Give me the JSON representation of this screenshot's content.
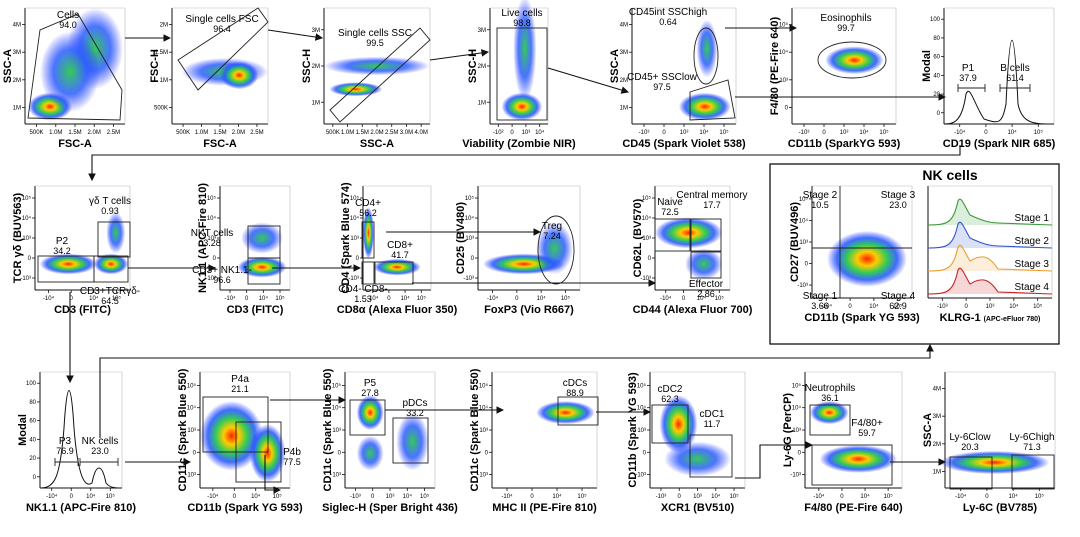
{
  "colors": {
    "gate": "#222222",
    "arrow": "#111111",
    "density_low": "#1a2bd8",
    "density_mid": "#33cc55",
    "density_high": "#ff2200"
  },
  "chart_data": [
    {
      "id": "p1",
      "type": "scatter",
      "xlabel": "FSC-A",
      "ylabel": "SSC-A",
      "xticks": [
        "500K",
        "1.0M",
        "1.5M",
        "2.0M",
        "2.5M"
      ],
      "yticks": [
        "1M",
        "2M",
        "3M",
        "4M"
      ],
      "gates": [
        {
          "label": "Cells",
          "value": "94.0"
        }
      ]
    },
    {
      "id": "p2",
      "type": "scatter",
      "xlabel": "FSC-A",
      "ylabel": "FSC-H",
      "xticks": [
        "500K",
        "1.0M",
        "1.5M",
        "2.0M",
        "2.5M"
      ],
      "yticks": [
        "500K",
        "1M",
        "1.5M",
        "2M"
      ],
      "gates": [
        {
          "label": "Single cells FSC",
          "value": "96.4"
        }
      ]
    },
    {
      "id": "p3",
      "type": "scatter",
      "xlabel": "SSC-A",
      "ylabel": "SSC-H",
      "xticks": [
        "500K",
        "1.0M",
        "1.5M",
        "2.0M",
        "2.5M",
        "3.0M",
        "4.0M"
      ],
      "yticks": [
        "1M",
        "2M",
        "3M"
      ],
      "gates": [
        {
          "label": "Single cells SSC",
          "value": "99.5"
        }
      ]
    },
    {
      "id": "p4",
      "type": "scatter",
      "xlabel": "Viability (Zombie NIR)",
      "ylabel": "SSC-H",
      "xticks": [
        "-10²",
        "0",
        "10³",
        "10⁴"
      ],
      "yticks": [
        "1M",
        "2M",
        "3M"
      ],
      "gates": [
        {
          "label": "Live cells",
          "value": "98.8"
        }
      ]
    },
    {
      "id": "p5",
      "type": "scatter",
      "xlabel": "CD45 (Spark Violet 538)",
      "ylabel": "SSC-A",
      "xticks": [
        "-10³",
        "0",
        "10³",
        "10⁴",
        "10⁵"
      ],
      "yticks": [
        "1M",
        "2M",
        "3M",
        "4M"
      ],
      "gates": [
        {
          "label": "CD45int SSChigh",
          "value": "0.64"
        },
        {
          "label": "CD45+ SSClow",
          "value": "97.5"
        }
      ]
    },
    {
      "id": "p6",
      "type": "scatter",
      "xlabel": "CD11b (SparkYG 593)",
      "ylabel": "F4/80 (PE-Fire 640)",
      "xticks": [
        "-10³",
        "0",
        "10³",
        "10⁴",
        "10⁵"
      ],
      "yticks": [
        "0",
        "10³",
        "10⁴",
        "10⁵"
      ],
      "gates": [
        {
          "label": "Eosinophils",
          "value": "99.7"
        }
      ]
    },
    {
      "id": "p7",
      "type": "histogram",
      "xlabel": "CD19 (Spark NIR 685)",
      "ylabel": "Modal",
      "xticks": [
        "-10⁴",
        "0",
        "10⁴",
        "10⁵"
      ],
      "yticks": [
        "0",
        "20",
        "40",
        "60",
        "80",
        "100"
      ],
      "gates": [
        {
          "label": "P1",
          "value": "37.9"
        },
        {
          "label": "B cells",
          "value": "61.4"
        }
      ]
    },
    {
      "id": "p8",
      "type": "scatter",
      "xlabel": "CD3 (FITC)",
      "ylabel": "TCR γδ (BUV563)",
      "xticks": [
        "-10⁴",
        "0",
        "10⁴",
        "10⁵"
      ],
      "yticks": [
        "-10³",
        "0",
        "10³",
        "10⁴",
        "10⁵"
      ],
      "gates": [
        {
          "label": "γδ T cells",
          "value": "0.93"
        },
        {
          "label": "P2",
          "value": "34.2"
        },
        {
          "label": "CD3+TCRγδ-",
          "value": "64.5"
        }
      ]
    },
    {
      "id": "p9",
      "type": "scatter",
      "xlabel": "CD3 (FITC)",
      "ylabel": "NK1.1 (APC-Fire 810)",
      "xticks": [
        "-10⁴",
        "0",
        "10⁴",
        "10⁵"
      ],
      "yticks": [
        "-10³",
        "0",
        "10³",
        "10⁴",
        "10⁵"
      ],
      "gates": [
        {
          "label": "NKT cells",
          "value": "3.28"
        },
        {
          "label": "CD3+ NK1.1-",
          "value": "96.6"
        }
      ]
    },
    {
      "id": "p10",
      "type": "scatter",
      "xlabel": "CD8α (Alexa Fluor 350)",
      "ylabel": "CD4 (Spark Blue 574)",
      "xticks": [
        "-10⁴",
        "0",
        "10⁴",
        "10⁵"
      ],
      "yticks": [
        "-10³",
        "0",
        "10³",
        "10⁴",
        "10⁵"
      ],
      "gates": [
        {
          "label": "CD4+",
          "value": "56.2"
        },
        {
          "label": "CD8+",
          "value": "41.7"
        },
        {
          "label": "CD4- CD8-",
          "value": "1.53"
        }
      ]
    },
    {
      "id": "p11",
      "type": "scatter",
      "xlabel": "FoxP3 (Vio R667)",
      "ylabel": "CD25 (BV480)",
      "xticks": [
        "-10⁴",
        "0",
        "10⁴",
        "10⁵"
      ],
      "yticks": [
        "-10³",
        "0",
        "10³",
        "10⁴",
        "10⁵"
      ],
      "gates": [
        {
          "label": "Treg",
          "value": "7.24"
        }
      ]
    },
    {
      "id": "p12",
      "type": "scatter",
      "xlabel": "CD44 (Alexa Fluor 700)",
      "ylabel": "CD62L (BV570)",
      "xticks": [
        "-10⁴",
        "0",
        "10⁴",
        "10⁵"
      ],
      "yticks": [
        "-10³",
        "0",
        "10³",
        "10⁴",
        "10⁵"
      ],
      "gates": [
        {
          "label": "Naive",
          "value": "72.5"
        },
        {
          "label": "Central memory",
          "value": "17.7"
        },
        {
          "label": "Effector",
          "value": "2.86"
        }
      ]
    },
    {
      "id": "p13",
      "type": "scatter",
      "xlabel": "CD11b (Spark YG 593)",
      "ylabel": "CD27 (BUV496)",
      "xticks": [
        "-10⁴",
        "0",
        "10⁴",
        "10⁵"
      ],
      "yticks": [
        "-10³",
        "0",
        "10³",
        "10⁴",
        "10⁵"
      ],
      "gates": [
        {
          "label": "Stage 2",
          "value": "10.5"
        },
        {
          "label": "Stage 3",
          "value": "23.0"
        },
        {
          "label": "Stage 1",
          "value": "3.66"
        },
        {
          "label": "Stage 4",
          "value": "62.9"
        }
      ]
    },
    {
      "id": "p14",
      "type": "histogram",
      "xlabel": "KLRG-1",
      "xlabel_sub": "(APC-eFluor 780)",
      "ylabel": "",
      "xticks": [
        "-10³",
        "0",
        "10³",
        "10⁴",
        "10⁵"
      ],
      "series": [
        {
          "name": "Stage 1",
          "color": "#3a9a3a"
        },
        {
          "name": "Stage 2",
          "color": "#3355cc"
        },
        {
          "name": "Stage 3",
          "color": "#e8a030"
        },
        {
          "name": "Stage 4",
          "color": "#cc2222"
        }
      ]
    },
    {
      "id": "p15",
      "type": "histogram",
      "xlabel": "NK1.1 (APC-Fire 810)",
      "ylabel": "Modal",
      "xticks": [
        "-10⁴",
        "0",
        "10⁴",
        "10⁵"
      ],
      "yticks": [
        "0",
        "20",
        "40",
        "60",
        "80",
        "100"
      ],
      "gates": [
        {
          "label": "P3",
          "value": "76.9"
        },
        {
          "label": "NK cells",
          "value": "23.0"
        }
      ]
    },
    {
      "id": "p16",
      "type": "scatter",
      "xlabel": "CD11b (Spark YG 593)",
      "ylabel": "CD11c (Spark Blue 550)",
      "xticks": [
        "-10⁴",
        "0",
        "10⁴",
        "10⁵"
      ],
      "yticks": [
        "-10³",
        "0",
        "10³",
        "10⁴",
        "10⁵"
      ],
      "gates": [
        {
          "label": "P4a",
          "value": "21.1"
        },
        {
          "label": "P4b",
          "value": "77.5"
        }
      ]
    },
    {
      "id": "p17",
      "type": "scatter",
      "xlabel": "Siglec-H (Sper Bright 436)",
      "ylabel": "CD11c (Spark Blue 550)",
      "xticks": [
        "-10³",
        "0",
        "10³",
        "10⁴",
        "10⁵"
      ],
      "yticks": [
        "-10³",
        "0",
        "10³",
        "10⁴",
        "10⁵"
      ],
      "gates": [
        {
          "label": "P5",
          "value": "27.8"
        },
        {
          "label": "pDCs",
          "value": "33.2"
        }
      ]
    },
    {
      "id": "p18",
      "type": "scatter",
      "xlabel": "MHC II (PE-Fire 810)",
      "ylabel": "CD11c (Spark Blue 550)",
      "xticks": [
        "-10⁴",
        "0",
        "10⁴",
        "10⁵"
      ],
      "yticks": [
        "-10³",
        "0",
        "10³",
        "10⁴",
        "10⁵"
      ],
      "gates": [
        {
          "label": "cDCs",
          "value": "88.9"
        }
      ]
    },
    {
      "id": "p19",
      "type": "scatter",
      "xlabel": "XCR1 (BV510)",
      "ylabel": "CD11b (Spark YG 593)",
      "xticks": [
        "-10³",
        "0",
        "10³",
        "10⁴",
        "10⁵"
      ],
      "yticks": [
        "-10³",
        "0",
        "10³",
        "10⁴",
        "10⁵"
      ],
      "gates": [
        {
          "label": "cDC2",
          "value": "62.3"
        },
        {
          "label": "cDC1",
          "value": "11.7"
        }
      ]
    },
    {
      "id": "p20",
      "type": "scatter",
      "xlabel": "F4/80 (PE-Fire 640)",
      "ylabel": "Ly-6G (PerCP)",
      "xticks": [
        "-10⁴",
        "0",
        "10⁴",
        "10⁵"
      ],
      "yticks": [
        "-10³",
        "0",
        "10³",
        "10⁴",
        "10⁵"
      ],
      "gates": [
        {
          "label": "Neutrophils",
          "value": "36.1"
        },
        {
          "label": "F4/80+",
          "value": "59.7"
        }
      ]
    },
    {
      "id": "p21",
      "type": "scatter",
      "xlabel": "Ly-6C (BV785)",
      "ylabel": "SSC-A",
      "xticks": [
        "-10⁴",
        "0",
        "10⁴",
        "10⁵"
      ],
      "yticks": [
        "1M",
        "2M",
        "3M",
        "4M"
      ],
      "gates": [
        {
          "label": "Ly-6Clow",
          "value": "20.3"
        },
        {
          "label": "Ly-6Chigh",
          "value": "71.3"
        }
      ]
    }
  ],
  "nk_panel": {
    "title": "NK cells"
  }
}
